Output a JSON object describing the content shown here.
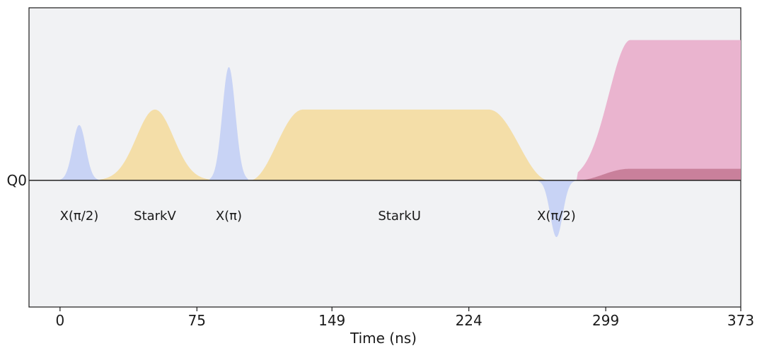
{
  "chart_data": {
    "type": "area",
    "title": "",
    "xlabel": "Time (ns)",
    "ylabel": "",
    "xlim": [
      -17,
      373
    ],
    "ylim": [
      -1.0,
      1.35
    ],
    "grid": false,
    "x_ticks": [
      0,
      75,
      149,
      224,
      299,
      373
    ],
    "x_tick_labels": [
      "0",
      "75",
      "149",
      "224",
      "299",
      "373"
    ],
    "channels": [
      "Q0"
    ],
    "colors": {
      "x_gate": "#c8d3f5",
      "stark": "#f4dea8",
      "measure": "#eab4cf",
      "measure_inner": "#c9809b",
      "background": "#f1f2f4",
      "baseline": "#222222"
    },
    "pulses": [
      {
        "label": "X(π/2)",
        "kind": "gaussian",
        "start": 0,
        "end": 21,
        "amp": 0.43,
        "color_key": "x_gate"
      },
      {
        "label": "StarkV",
        "kind": "gaussian",
        "start": 22,
        "end": 82,
        "amp": 0.55,
        "color_key": "stark"
      },
      {
        "label": "X(π)",
        "kind": "gaussian",
        "start": 82,
        "end": 103,
        "amp": 0.88,
        "color_key": "x_gate"
      },
      {
        "label": "StarkU",
        "kind": "flat_top",
        "start": 104,
        "end": 268,
        "rise_end": 133,
        "fall_start": 235,
        "amp": 0.55,
        "color_key": "stark"
      },
      {
        "label": "X(π/2)",
        "kind": "gaussian",
        "start": 262,
        "end": 282,
        "amp": -0.44,
        "color_key": "x_gate"
      },
      {
        "label": "",
        "kind": "measure",
        "start": 283,
        "end": 373,
        "rise_end": 312,
        "amp": 1.09,
        "inner_amp": 0.09,
        "color_key": "measure"
      }
    ]
  }
}
